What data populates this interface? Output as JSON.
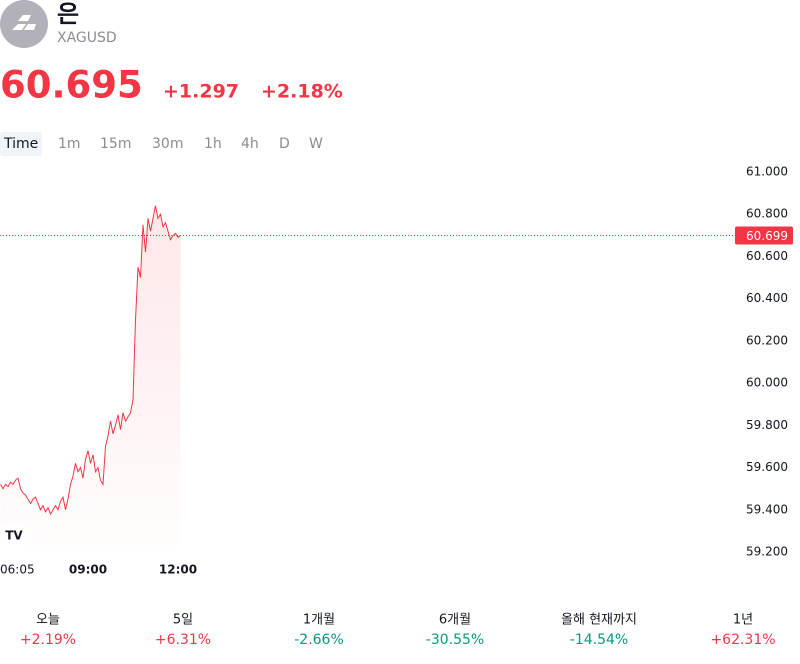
{
  "header": {
    "title": "은",
    "symbol": "XAGUSD",
    "price": "60.695",
    "change": "+1.297",
    "change_pct": "+2.18%"
  },
  "tabs": [
    "Time",
    "1m",
    "15m",
    "30m",
    "1h",
    "4h",
    "D",
    "W"
  ],
  "chart_data": {
    "type": "area",
    "color": "#f23645",
    "categories": [
      "06:05",
      null,
      null,
      null,
      null,
      null,
      null,
      null,
      null,
      null,
      null,
      null,
      null,
      null,
      null,
      null,
      null,
      null,
      null,
      null,
      null,
      null,
      null,
      null,
      null,
      null,
      null,
      null,
      null,
      null,
      null,
      null,
      null,
      null,
      null,
      "09:00",
      null,
      null,
      null,
      null,
      null,
      null,
      null,
      null,
      null,
      null,
      null,
      null,
      null,
      null,
      null,
      null,
      null,
      null,
      null,
      null,
      null,
      null,
      null,
      null,
      null,
      null,
      null,
      null,
      null,
      null,
      null,
      null,
      null,
      null,
      null,
      "12:00",
      null
    ],
    "values": [
      59.52,
      59.5,
      59.52,
      59.51,
      59.53,
      59.52,
      59.54,
      59.55,
      59.5,
      59.48,
      59.47,
      59.45,
      59.43,
      59.45,
      59.46,
      59.43,
      59.4,
      59.42,
      59.39,
      59.41,
      59.38,
      59.4,
      59.42,
      59.4,
      59.44,
      59.46,
      59.4,
      59.45,
      59.52,
      59.56,
      59.62,
      59.58,
      59.6,
      59.55,
      59.64,
      59.68,
      59.62,
      59.66,
      59.58,
      59.6,
      59.54,
      59.52,
      59.7,
      59.75,
      59.82,
      59.76,
      59.8,
      59.85,
      59.78,
      59.86,
      59.82,
      59.84,
      59.86,
      59.92,
      60.3,
      60.55,
      60.5,
      60.75,
      60.62,
      60.78,
      60.72,
      60.78,
      60.84,
      60.78,
      60.8,
      60.74,
      60.76,
      60.72,
      60.68,
      60.7,
      60.71,
      60.69,
      60.7
    ],
    "ylim": [
      59.2,
      61.0
    ],
    "yticks": [
      {
        "value": 61.0,
        "label": "61.000"
      },
      {
        "value": 60.8,
        "label": "60.800"
      },
      {
        "value": 60.6,
        "label": "60.600"
      },
      {
        "value": 60.4,
        "label": "60.400"
      },
      {
        "value": 60.2,
        "label": "60.200"
      },
      {
        "value": 60.0,
        "label": "60.000"
      },
      {
        "value": 59.8,
        "label": "59.800"
      },
      {
        "value": 59.6,
        "label": "59.600"
      },
      {
        "value": 59.4,
        "label": "59.400"
      },
      {
        "value": 59.2,
        "label": "59.200"
      }
    ],
    "last_price": 60.699,
    "grid": false
  },
  "performance": [
    {
      "label": "오늘",
      "value": "+2.19%",
      "color": "#f23645"
    },
    {
      "label": "5일",
      "value": "+6.31%",
      "color": "#f23645"
    },
    {
      "label": "1개월",
      "value": "-2.66%",
      "color": "#089981"
    },
    {
      "label": "6개월",
      "value": "-30.55%",
      "color": "#089981"
    },
    {
      "label": "올해 현재까지",
      "value": "-14.54%",
      "color": "#089981"
    },
    {
      "label": "1년",
      "value": "+62.31%",
      "color": "#f23645"
    }
  ]
}
